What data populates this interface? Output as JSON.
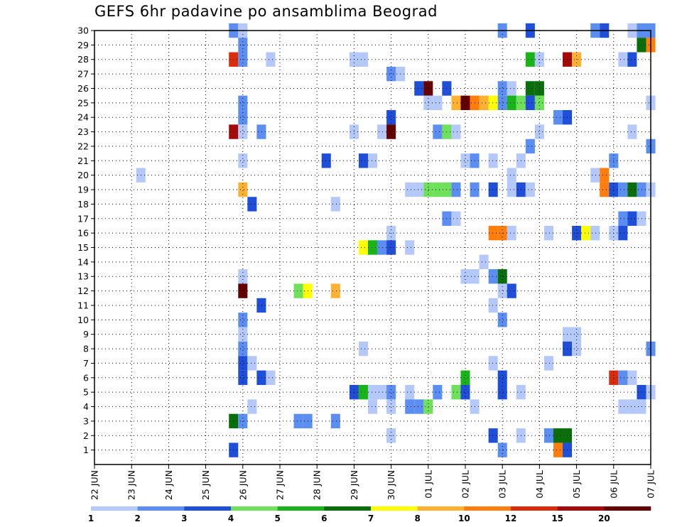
{
  "chart_data": {
    "type": "heatmap",
    "title": "GEFS 6hr padavine po ansamblima Beograd",
    "x_tick_labels": [
      "22 JUN",
      "23 JUN",
      "24 JUN",
      "25 JUN",
      "26 JUN",
      "27 JUN",
      "28 JUN",
      "29 JUN",
      "30 JUN",
      "01 JUL",
      "02 JUL",
      "03 JUL",
      "04 JUL",
      "05 JUL",
      "06 JUL",
      "07 JUL"
    ],
    "x_range_6h_steps": [
      0,
      60
    ],
    "y_tick_labels": [
      "1",
      "2",
      "3",
      "4",
      "5",
      "6",
      "7",
      "8",
      "9",
      "10",
      "11",
      "12",
      "13",
      "14",
      "15",
      "16",
      "17",
      "18",
      "19",
      "20",
      "21",
      "22",
      "23",
      "24",
      "25",
      "26",
      "27",
      "28",
      "29",
      "30"
    ],
    "y_range_members": [
      0,
      30
    ],
    "grid": true,
    "legend_position": "bottom",
    "legend": {
      "colors": [
        "#b4c8f9",
        "#5b8ef0",
        "#1f4ed8",
        "#6ee05a",
        "#19b419",
        "#0a6e0a",
        "#ffff00",
        "#ffb232",
        "#ff7d0a",
        "#dc2d0a",
        "#a50a0a",
        "#640000"
      ],
      "labels": [
        "1",
        "2",
        "3",
        "4",
        "5",
        "6",
        "7",
        "8",
        "10",
        "12",
        "15",
        "20"
      ]
    },
    "cells": [
      [
        15,
        30,
        2
      ],
      [
        16,
        30,
        1
      ],
      [
        54,
        30,
        2
      ],
      [
        55,
        30,
        3
      ],
      [
        58,
        30,
        1
      ],
      [
        59,
        30,
        2
      ],
      [
        60,
        30,
        2
      ],
      [
        44,
        30,
        2
      ],
      [
        47,
        30,
        3
      ],
      [
        16,
        29,
        2
      ],
      [
        59,
        29,
        6
      ],
      [
        60,
        29,
        9
      ],
      [
        15,
        28,
        10
      ],
      [
        16,
        28,
        2
      ],
      [
        19,
        28,
        1
      ],
      [
        28,
        28,
        1
      ],
      [
        29,
        28,
        1
      ],
      [
        47,
        28,
        5
      ],
      [
        48,
        28,
        1
      ],
      [
        51,
        28,
        11
      ],
      [
        52,
        28,
        8
      ],
      [
        57,
        28,
        1
      ],
      [
        58,
        28,
        3
      ],
      [
        32,
        27,
        2
      ],
      [
        33,
        27,
        1
      ],
      [
        35,
        26,
        3
      ],
      [
        36,
        26,
        12
      ],
      [
        38,
        26,
        3
      ],
      [
        44,
        26,
        2
      ],
      [
        45,
        26,
        1
      ],
      [
        47,
        26,
        6
      ],
      [
        48,
        26,
        6
      ],
      [
        16,
        25,
        2
      ],
      [
        36,
        25,
        1
      ],
      [
        37,
        25,
        1
      ],
      [
        39,
        25,
        8
      ],
      [
        40,
        25,
        12
      ],
      [
        41,
        25,
        9
      ],
      [
        42,
        25,
        8
      ],
      [
        43,
        25,
        7
      ],
      [
        44,
        25,
        2
      ],
      [
        45,
        25,
        5
      ],
      [
        46,
        25,
        4
      ],
      [
        47,
        25,
        3
      ],
      [
        48,
        25,
        4
      ],
      [
        60,
        25,
        1
      ],
      [
        16,
        24,
        2
      ],
      [
        32,
        24,
        3
      ],
      [
        50,
        24,
        2
      ],
      [
        51,
        24,
        3
      ],
      [
        15,
        23,
        11
      ],
      [
        16,
        23,
        1
      ],
      [
        18,
        23,
        2
      ],
      [
        28,
        23,
        1
      ],
      [
        31,
        23,
        1
      ],
      [
        32,
        23,
        12
      ],
      [
        37,
        23,
        2
      ],
      [
        38,
        23,
        4
      ],
      [
        39,
        23,
        1
      ],
      [
        48,
        23,
        1
      ],
      [
        58,
        23,
        1
      ],
      [
        47,
        22,
        2
      ],
      [
        60,
        22,
        2
      ],
      [
        16,
        21,
        1
      ],
      [
        25,
        21,
        3
      ],
      [
        29,
        21,
        3
      ],
      [
        30,
        21,
        1
      ],
      [
        40,
        21,
        1
      ],
      [
        41,
        21,
        2
      ],
      [
        43,
        21,
        1
      ],
      [
        46,
        21,
        1
      ],
      [
        56,
        21,
        2
      ],
      [
        5,
        20,
        1
      ],
      [
        45,
        20,
        1
      ],
      [
        54,
        20,
        1
      ],
      [
        55,
        20,
        9
      ],
      [
        16,
        19,
        8
      ],
      [
        34,
        19,
        1
      ],
      [
        35,
        19,
        1
      ],
      [
        36,
        19,
        4
      ],
      [
        37,
        19,
        4
      ],
      [
        38,
        19,
        4
      ],
      [
        39,
        19,
        2
      ],
      [
        41,
        19,
        2
      ],
      [
        43,
        19,
        3
      ],
      [
        45,
        19,
        1
      ],
      [
        46,
        19,
        3
      ],
      [
        47,
        19,
        1
      ],
      [
        55,
        19,
        9
      ],
      [
        56,
        19,
        3
      ],
      [
        57,
        19,
        2
      ],
      [
        58,
        19,
        6
      ],
      [
        59,
        19,
        2
      ],
      [
        60,
        19,
        1
      ],
      [
        17,
        18,
        3
      ],
      [
        26,
        18,
        1
      ],
      [
        38,
        17,
        2
      ],
      [
        39,
        17,
        1
      ],
      [
        57,
        17,
        2
      ],
      [
        58,
        17,
        3
      ],
      [
        59,
        17,
        1
      ],
      [
        32,
        16,
        1
      ],
      [
        43,
        16,
        9
      ],
      [
        44,
        16,
        9
      ],
      [
        45,
        16,
        1
      ],
      [
        49,
        16,
        1
      ],
      [
        52,
        16,
        3
      ],
      [
        53,
        16,
        7
      ],
      [
        54,
        16,
        1
      ],
      [
        56,
        16,
        1
      ],
      [
        57,
        16,
        3
      ],
      [
        29,
        15,
        7
      ],
      [
        30,
        15,
        5
      ],
      [
        31,
        15,
        2
      ],
      [
        32,
        15,
        3
      ],
      [
        34,
        15,
        1
      ],
      [
        42,
        14,
        1
      ],
      [
        16,
        13,
        1
      ],
      [
        40,
        13,
        1
      ],
      [
        41,
        13,
        1
      ],
      [
        43,
        13,
        2
      ],
      [
        44,
        13,
        6
      ],
      [
        16,
        12,
        12
      ],
      [
        22,
        12,
        4
      ],
      [
        23,
        12,
        7
      ],
      [
        26,
        12,
        8
      ],
      [
        44,
        12,
        1
      ],
      [
        45,
        12,
        3
      ],
      [
        18,
        11,
        3
      ],
      [
        43,
        11,
        1
      ],
      [
        16,
        10,
        2
      ],
      [
        44,
        10,
        2
      ],
      [
        16,
        9,
        1
      ],
      [
        51,
        9,
        1
      ],
      [
        52,
        9,
        1
      ],
      [
        16,
        8,
        2
      ],
      [
        29,
        8,
        1
      ],
      [
        51,
        8,
        3
      ],
      [
        52,
        8,
        1
      ],
      [
        60,
        8,
        2
      ],
      [
        16,
        7,
        3
      ],
      [
        17,
        7,
        1
      ],
      [
        43,
        7,
        1
      ],
      [
        49,
        7,
        1
      ],
      [
        16,
        6,
        3
      ],
      [
        18,
        6,
        3
      ],
      [
        19,
        6,
        1
      ],
      [
        40,
        6,
        5
      ],
      [
        44,
        6,
        3
      ],
      [
        56,
        6,
        10
      ],
      [
        57,
        6,
        2
      ],
      [
        58,
        6,
        1
      ],
      [
        28,
        5,
        3
      ],
      [
        29,
        5,
        5
      ],
      [
        30,
        5,
        1
      ],
      [
        31,
        5,
        1
      ],
      [
        32,
        5,
        2
      ],
      [
        34,
        5,
        1
      ],
      [
        37,
        5,
        2
      ],
      [
        39,
        5,
        4
      ],
      [
        40,
        5,
        3
      ],
      [
        44,
        5,
        3
      ],
      [
        46,
        5,
        1
      ],
      [
        59,
        5,
        3
      ],
      [
        60,
        5,
        1
      ],
      [
        17,
        4,
        1
      ],
      [
        30,
        4,
        1
      ],
      [
        32,
        4,
        1
      ],
      [
        34,
        4,
        2
      ],
      [
        35,
        4,
        2
      ],
      [
        36,
        4,
        4
      ],
      [
        41,
        4,
        1
      ],
      [
        57,
        4,
        1
      ],
      [
        58,
        4,
        1
      ],
      [
        59,
        4,
        1
      ],
      [
        15,
        3,
        6
      ],
      [
        16,
        3,
        2
      ],
      [
        22,
        3,
        2
      ],
      [
        23,
        3,
        2
      ],
      [
        26,
        3,
        2
      ],
      [
        32,
        2,
        1
      ],
      [
        43,
        2,
        3
      ],
      [
        46,
        2,
        1
      ],
      [
        49,
        2,
        2
      ],
      [
        50,
        2,
        6
      ],
      [
        51,
        2,
        6
      ],
      [
        15,
        1,
        3
      ],
      [
        44,
        1,
        2
      ],
      [
        50,
        1,
        9
      ],
      [
        51,
        1,
        3
      ]
    ]
  }
}
